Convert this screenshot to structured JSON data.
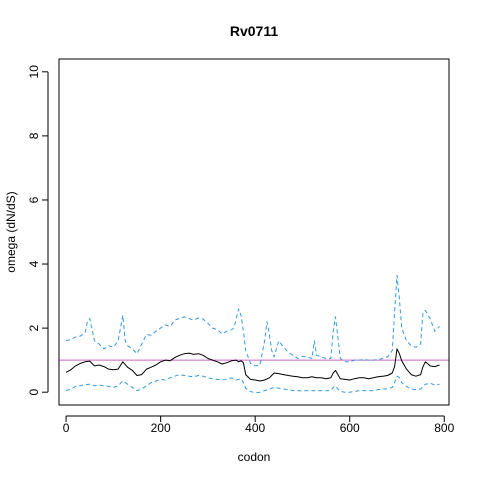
{
  "chart_data": {
    "type": "line",
    "title": "Rv0711",
    "xlabel": "codon",
    "ylabel": "omega (dN/dS)",
    "xlim": [
      -15,
      810
    ],
    "ylim": [
      -0.4,
      10.4
    ],
    "x_ticks": [
      0,
      200,
      400,
      600,
      800
    ],
    "y_ticks": [
      0,
      2,
      4,
      6,
      8,
      10
    ],
    "x_tick_labels": [
      "0",
      "200",
      "400",
      "600",
      "800"
    ],
    "y_tick_labels": [
      "0",
      "2",
      "4",
      "6",
      "8",
      "10"
    ],
    "grid": false,
    "reference_line": {
      "y": 1,
      "color": "#cc66cc"
    },
    "colors": {
      "estimate": "#000000",
      "interval": "#3399dd"
    },
    "series": [
      {
        "style": "solid",
        "x": [
          0,
          10,
          20,
          30,
          40,
          50,
          60,
          70,
          80,
          90,
          100,
          110,
          120,
          130,
          140,
          150,
          160,
          170,
          180,
          190,
          200,
          210,
          220,
          230,
          240,
          250,
          260,
          270,
          280,
          290,
          300,
          310,
          320,
          330,
          340,
          350,
          360,
          365,
          370,
          375,
          380,
          390,
          400,
          410,
          420,
          430,
          440,
          450,
          460,
          470,
          480,
          490,
          500,
          510,
          520,
          530,
          540,
          550,
          560,
          565,
          570,
          575,
          580,
          590,
          600,
          610,
          620,
          630,
          640,
          650,
          660,
          670,
          680,
          690,
          695,
          700,
          705,
          710,
          720,
          730,
          740,
          750,
          755,
          760,
          770,
          780,
          790
        ],
        "y": [
          0.62,
          0.7,
          0.82,
          0.9,
          0.95,
          0.97,
          0.82,
          0.85,
          0.8,
          0.72,
          0.7,
          0.72,
          0.95,
          0.78,
          0.68,
          0.52,
          0.55,
          0.72,
          0.78,
          0.85,
          0.95,
          1.0,
          0.98,
          1.08,
          1.15,
          1.2,
          1.22,
          1.18,
          1.2,
          1.15,
          1.05,
          1.0,
          0.95,
          0.88,
          0.92,
          0.98,
          1.0,
          0.95,
          0.98,
          0.92,
          0.55,
          0.4,
          0.38,
          0.35,
          0.38,
          0.45,
          0.6,
          0.58,
          0.55,
          0.52,
          0.5,
          0.48,
          0.45,
          0.45,
          0.48,
          0.45,
          0.45,
          0.42,
          0.45,
          0.6,
          0.68,
          0.55,
          0.42,
          0.4,
          0.38,
          0.42,
          0.45,
          0.45,
          0.42,
          0.45,
          0.48,
          0.5,
          0.52,
          0.6,
          0.8,
          1.35,
          1.2,
          0.98,
          0.72,
          0.55,
          0.5,
          0.55,
          0.8,
          0.95,
          0.82,
          0.8,
          0.85
        ]
      },
      {
        "style": "dashed",
        "x": [
          0,
          10,
          20,
          30,
          40,
          45,
          50,
          55,
          60,
          70,
          80,
          90,
          100,
          110,
          115,
          120,
          125,
          130,
          140,
          150,
          160,
          170,
          180,
          190,
          200,
          210,
          220,
          230,
          240,
          250,
          260,
          270,
          280,
          290,
          300,
          310,
          320,
          330,
          340,
          350,
          355,
          360,
          365,
          370,
          375,
          380,
          390,
          400,
          410,
          420,
          425,
          430,
          435,
          440,
          450,
          460,
          470,
          480,
          490,
          500,
          510,
          520,
          525,
          530,
          540,
          550,
          560,
          565,
          570,
          575,
          580,
          590,
          600,
          610,
          620,
          630,
          640,
          650,
          660,
          670,
          680,
          690,
          695,
          700,
          705,
          710,
          720,
          730,
          740,
          750,
          755,
          760,
          770,
          780,
          790
        ],
        "y": [
          1.6,
          1.65,
          1.72,
          1.75,
          1.85,
          2.2,
          2.3,
          1.95,
          1.6,
          1.5,
          1.35,
          1.45,
          1.4,
          1.6,
          2.0,
          2.4,
          1.6,
          1.45,
          1.35,
          1.2,
          1.5,
          1.8,
          1.78,
          1.9,
          2.0,
          2.1,
          2.05,
          2.25,
          2.3,
          2.35,
          2.3,
          2.25,
          2.32,
          2.28,
          2.15,
          2.0,
          1.95,
          1.82,
          1.9,
          1.95,
          2.0,
          2.3,
          2.6,
          2.4,
          1.9,
          1.3,
          0.9,
          0.82,
          0.85,
          1.6,
          2.2,
          1.8,
          1.3,
          1.1,
          1.6,
          1.4,
          1.25,
          1.15,
          1.05,
          1.12,
          1.1,
          1.05,
          1.6,
          1.15,
          1.1,
          1.05,
          1.05,
          1.9,
          2.35,
          1.7,
          1.05,
          0.95,
          0.95,
          1.0,
          1.0,
          1.02,
          1.0,
          1.0,
          1.02,
          1.05,
          1.1,
          1.3,
          2.5,
          3.65,
          2.9,
          2.0,
          1.6,
          1.45,
          1.4,
          1.5,
          2.5,
          2.55,
          2.3,
          1.9,
          2.05
        ]
      },
      {
        "style": "dashed",
        "x": [
          0,
          10,
          20,
          30,
          40,
          50,
          60,
          70,
          80,
          90,
          100,
          110,
          120,
          130,
          140,
          150,
          160,
          170,
          180,
          190,
          200,
          210,
          220,
          230,
          240,
          250,
          260,
          270,
          280,
          290,
          300,
          310,
          320,
          330,
          340,
          350,
          360,
          370,
          375,
          380,
          390,
          400,
          410,
          420,
          430,
          440,
          450,
          460,
          470,
          480,
          490,
          500,
          510,
          520,
          530,
          540,
          550,
          560,
          565,
          570,
          575,
          580,
          590,
          600,
          610,
          620,
          630,
          640,
          650,
          660,
          670,
          680,
          690,
          695,
          700,
          705,
          710,
          720,
          730,
          740,
          750,
          760,
          770,
          780,
          790
        ],
        "y": [
          0.05,
          0.1,
          0.18,
          0.2,
          0.24,
          0.25,
          0.2,
          0.22,
          0.2,
          0.18,
          0.15,
          0.2,
          0.35,
          0.25,
          0.15,
          0.05,
          0.1,
          0.2,
          0.3,
          0.35,
          0.4,
          0.38,
          0.45,
          0.5,
          0.55,
          0.52,
          0.5,
          0.48,
          0.52,
          0.5,
          0.45,
          0.42,
          0.4,
          0.38,
          0.4,
          0.45,
          0.38,
          0.42,
          0.3,
          0.12,
          0.02,
          -0.02,
          0.0,
          0.05,
          0.1,
          0.15,
          0.12,
          0.1,
          0.08,
          0.05,
          0.05,
          0.04,
          0.05,
          0.05,
          0.04,
          0.05,
          0.05,
          0.05,
          0.15,
          0.2,
          0.1,
          0.02,
          0.0,
          0.0,
          0.02,
          0.05,
          0.05,
          0.05,
          0.05,
          0.08,
          0.1,
          0.1,
          0.15,
          0.3,
          0.5,
          0.45,
          0.3,
          0.18,
          0.1,
          0.08,
          0.1,
          0.25,
          0.28,
          0.22,
          0.25
        ]
      }
    ]
  }
}
